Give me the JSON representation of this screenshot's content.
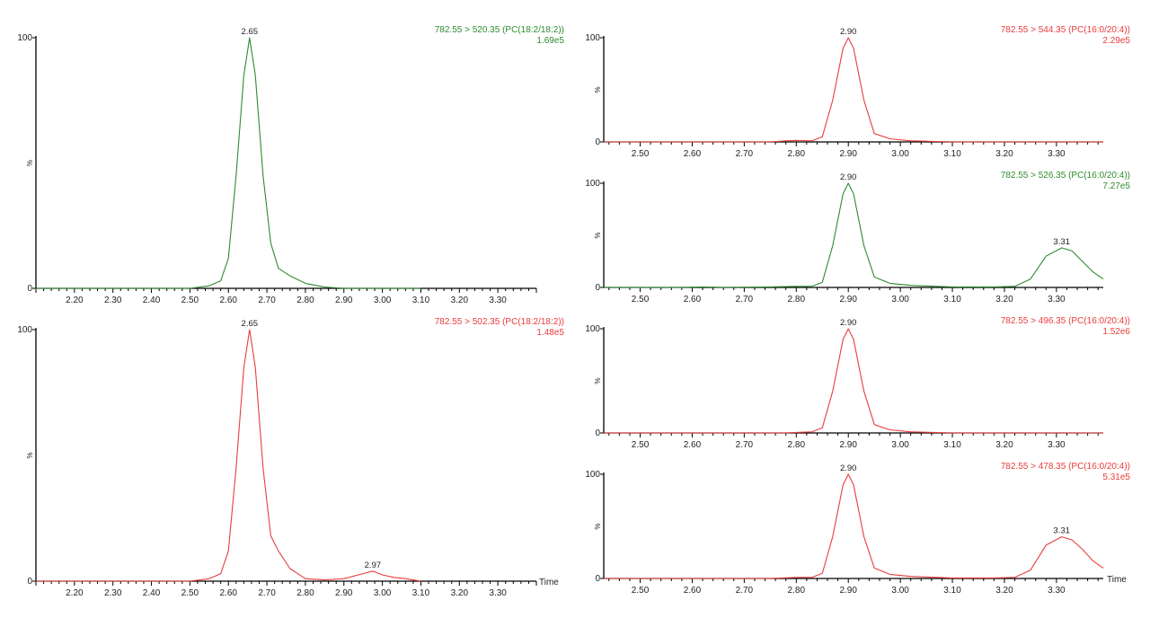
{
  "chart_data": [
    {
      "type": "line",
      "info_label": "782.55 > 520.35 (PC(18:2/18:2))",
      "intensity": "1.69e5",
      "color": "#2e8b2e",
      "ylabel": "%",
      "xlabel": "",
      "xlim": [
        2.1,
        3.4
      ],
      "ylim": [
        0,
        100
      ],
      "y_ticks": [
        "100",
        "0"
      ],
      "x_ticks": [
        "2.20",
        "2.30",
        "2.40",
        "2.50",
        "2.60",
        "2.70",
        "2.80",
        "2.90",
        "3.00",
        "3.10",
        "3.20",
        "3.30"
      ],
      "peaks": [
        {
          "x": 2.655,
          "y": 100,
          "label": "2.65"
        }
      ],
      "series": [
        {
          "x": [
            2.1,
            2.5,
            2.55,
            2.58,
            2.6,
            2.62,
            2.64,
            2.655,
            2.67,
            2.69,
            2.71,
            2.73,
            2.76,
            2.8,
            2.85,
            2.9,
            3.1
          ],
          "y": [
            0,
            0,
            1,
            3,
            12,
            45,
            85,
            100,
            85,
            45,
            18,
            8,
            5,
            2,
            0.5,
            0,
            0
          ]
        }
      ]
    },
    {
      "type": "line",
      "info_label": "782.55 > 502.35 (PC(18:2/18:2))",
      "intensity": "1.48e5",
      "color": "#e83c3c",
      "ylabel": "%",
      "xlabel": "Time",
      "xlim": [
        2.1,
        3.4
      ],
      "ylim": [
        0,
        100
      ],
      "y_ticks": [
        "100",
        "0"
      ],
      "x_ticks": [
        "2.20",
        "2.30",
        "2.40",
        "2.50",
        "2.60",
        "2.70",
        "2.80",
        "2.90",
        "3.00",
        "3.10",
        "3.20",
        "3.30"
      ],
      "peaks": [
        {
          "x": 2.655,
          "y": 100,
          "label": "2.65"
        },
        {
          "x": 2.975,
          "y": 4,
          "label": "2.97"
        }
      ],
      "series": [
        {
          "x": [
            2.1,
            2.5,
            2.55,
            2.58,
            2.6,
            2.62,
            2.64,
            2.655,
            2.67,
            2.69,
            2.71,
            2.73,
            2.76,
            2.8,
            2.85,
            2.9,
            2.95,
            2.975,
            3.0,
            3.03,
            3.06,
            3.08,
            3.1
          ],
          "y": [
            0,
            0,
            1,
            3,
            12,
            45,
            85,
            100,
            85,
            45,
            18,
            12,
            5,
            1,
            0.5,
            1,
            3,
            4,
            2.5,
            1.5,
            1,
            0.5,
            0
          ]
        }
      ]
    },
    {
      "type": "line",
      "info_label": "782.55 > 544.35 (PC(16:0/20:4))",
      "intensity": "2.29e5",
      "color": "#e83c3c",
      "ylabel": "%",
      "xlabel": "",
      "xlim": [
        2.43,
        3.39
      ],
      "ylim": [
        0,
        100
      ],
      "y_ticks": [
        "100",
        "0"
      ],
      "x_ticks": [
        "2.50",
        "2.60",
        "2.70",
        "2.80",
        "2.90",
        "3.00",
        "3.10",
        "3.20",
        "3.30"
      ],
      "peaks": [
        {
          "x": 2.9,
          "y": 100,
          "label": "2.90"
        }
      ],
      "series": [
        {
          "x": [
            2.43,
            2.75,
            2.78,
            2.8,
            2.83,
            2.85,
            2.87,
            2.89,
            2.9,
            2.91,
            2.93,
            2.95,
            2.98,
            3.02,
            3.1,
            3.39
          ],
          "y": [
            0,
            0,
            1,
            1.5,
            1,
            5,
            40,
            90,
            100,
            90,
            40,
            8,
            3,
            1,
            0,
            0
          ]
        }
      ]
    },
    {
      "type": "line",
      "info_label": "782.55 > 526.35 (PC(16:0/20:4))",
      "intensity": "7.27e5",
      "color": "#2e8b2e",
      "ylabel": "%",
      "xlabel": "",
      "xlim": [
        2.43,
        3.39
      ],
      "ylim": [
        0,
        100
      ],
      "y_ticks": [
        "100",
        "0"
      ],
      "x_ticks": [
        "2.50",
        "2.60",
        "2.70",
        "2.80",
        "2.90",
        "3.00",
        "3.10",
        "3.20",
        "3.30"
      ],
      "peaks": [
        {
          "x": 2.9,
          "y": 100,
          "label": "2.90"
        },
        {
          "x": 3.31,
          "y": 38,
          "label": "3.31"
        }
      ],
      "series": [
        {
          "x": [
            2.43,
            2.58,
            2.62,
            2.66,
            2.75,
            2.8,
            2.83,
            2.85,
            2.87,
            2.89,
            2.9,
            2.91,
            2.93,
            2.95,
            2.98,
            3.02,
            3.1,
            3.18,
            3.22,
            3.25,
            3.28,
            3.31,
            3.33,
            3.35,
            3.37,
            3.39
          ],
          "y": [
            0,
            0,
            0.5,
            0,
            0.5,
            1,
            1,
            5,
            40,
            90,
            100,
            90,
            40,
            10,
            4,
            2,
            0.5,
            0.5,
            1,
            8,
            30,
            38,
            35,
            25,
            15,
            8
          ]
        }
      ]
    },
    {
      "type": "line",
      "info_label": "782.55 > 496.35 (PC(16:0/20:4))",
      "intensity": "1.52e6",
      "color": "#e83c3c",
      "ylabel": "%",
      "xlabel": "",
      "xlim": [
        2.43,
        3.39
      ],
      "ylim": [
        0,
        100
      ],
      "y_ticks": [
        "100",
        "0"
      ],
      "x_ticks": [
        "2.50",
        "2.60",
        "2.70",
        "2.80",
        "2.90",
        "3.00",
        "3.10",
        "3.20",
        "3.30"
      ],
      "peaks": [
        {
          "x": 2.9,
          "y": 100,
          "label": "2.90"
        }
      ],
      "series": [
        {
          "x": [
            2.43,
            2.78,
            2.8,
            2.83,
            2.85,
            2.87,
            2.89,
            2.9,
            2.91,
            2.93,
            2.95,
            2.98,
            3.02,
            3.1,
            3.39
          ],
          "y": [
            0,
            0,
            0.5,
            1,
            5,
            40,
            90,
            100,
            90,
            40,
            8,
            3,
            1,
            0,
            0
          ]
        }
      ]
    },
    {
      "type": "line",
      "info_label": "782.55 > 478.35 (PC(16:0/20:4))",
      "intensity": "5.31e5",
      "color": "#e83c3c",
      "ylabel": "%",
      "xlabel": "Time",
      "xlim": [
        2.43,
        3.39
      ],
      "ylim": [
        0,
        100
      ],
      "y_ticks": [
        "100",
        "0"
      ],
      "x_ticks": [
        "2.50",
        "2.60",
        "2.70",
        "2.80",
        "2.90",
        "3.00",
        "3.10",
        "3.20",
        "3.30"
      ],
      "peaks": [
        {
          "x": 2.9,
          "y": 100,
          "label": "2.90"
        },
        {
          "x": 3.31,
          "y": 40,
          "label": "3.31"
        }
      ],
      "series": [
        {
          "x": [
            2.43,
            2.75,
            2.8,
            2.83,
            2.85,
            2.87,
            2.89,
            2.9,
            2.91,
            2.93,
            2.95,
            2.98,
            3.02,
            3.1,
            3.18,
            3.22,
            3.25,
            3.28,
            3.31,
            3.33,
            3.35,
            3.37,
            3.39
          ],
          "y": [
            0,
            0,
            1,
            1,
            5,
            40,
            90,
            100,
            90,
            40,
            10,
            4,
            2,
            0.5,
            0.5,
            1,
            8,
            32,
            40,
            37,
            28,
            17,
            10
          ]
        }
      ]
    }
  ]
}
